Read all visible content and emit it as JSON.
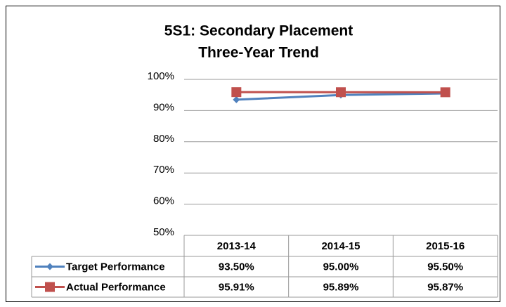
{
  "chart_data": {
    "type": "line",
    "title": "5S1: Secondary Placement",
    "subtitle": "Three-Year Trend",
    "categories": [
      "2013-14",
      "2014-15",
      "2015-16"
    ],
    "series": [
      {
        "name": "Target Performance",
        "color": "#4f81bd",
        "marker": "diamond",
        "values": [
          93.5,
          95.0,
          95.5
        ],
        "value_labels": [
          "93.50%",
          "95.00%",
          "95.50%"
        ]
      },
      {
        "name": "Actual Performance",
        "color": "#c0504d",
        "marker": "square",
        "values": [
          95.91,
          95.89,
          95.87
        ],
        "value_labels": [
          "95.91%",
          "95.89%",
          "95.87%"
        ]
      }
    ],
    "ylim": [
      50,
      100
    ],
    "yticks": [
      {
        "value": 50,
        "label": "50%"
      },
      {
        "value": 60,
        "label": "60%"
      },
      {
        "value": 70,
        "label": "70%"
      },
      {
        "value": 80,
        "label": "80%"
      },
      {
        "value": 90,
        "label": "90%"
      },
      {
        "value": 100,
        "label": "100%"
      }
    ],
    "grid": true
  }
}
